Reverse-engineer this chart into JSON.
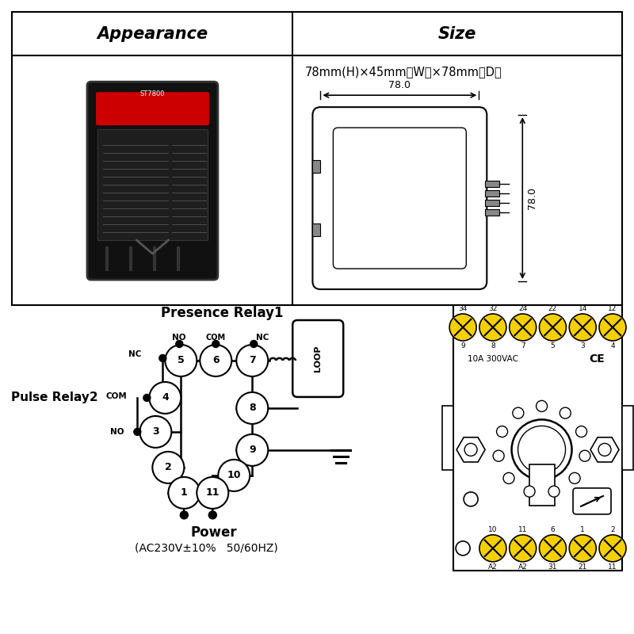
{
  "bg_color": "#ffffff",
  "appearance_title": "Appearance",
  "size_title": "Size",
  "size_text": "78mm(H)×45mm（W）×78mm（D）",
  "size_dim_top": "78.0",
  "size_dim_right": "78.0",
  "presence_relay_title": "Presence Relay1",
  "pulse_relay_title": "Pulse Relay2",
  "power_title": "Power",
  "power_text": "(AC230V±10%   50/60HZ)",
  "top_nodes_labels": [
    "34",
    "32",
    "24",
    "22",
    "14",
    "12"
  ],
  "top_nodes_sub": [
    "9",
    "8",
    "7",
    "5",
    "3",
    "4"
  ],
  "bot_nodes_labels": [
    "10",
    "11",
    "6",
    "1",
    "2"
  ],
  "bot_nodes_sub": [
    "A2",
    "A2",
    "31",
    "21",
    "11"
  ],
  "spec_text": "10A 300VAC",
  "ce_text": "CE"
}
